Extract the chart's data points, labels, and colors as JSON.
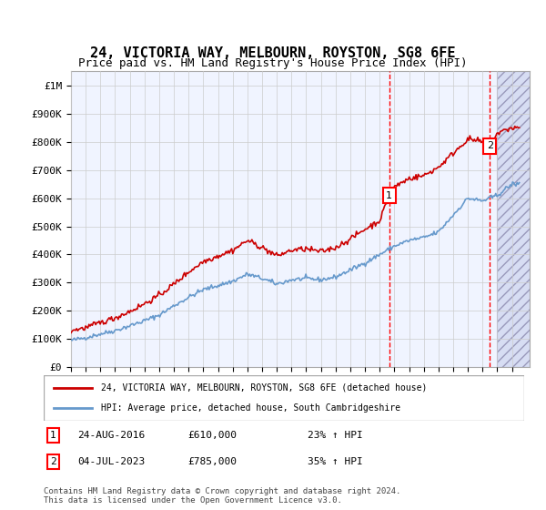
{
  "title": "24, VICTORIA WAY, MELBOURN, ROYSTON, SG8 6FE",
  "subtitle": "Price paid vs. HM Land Registry's House Price Index (HPI)",
  "legend_line1": "24, VICTORIA WAY, MELBOURN, ROYSTON, SG8 6FE (detached house)",
  "legend_line2": "HPI: Average price, detached house, South Cambridgeshire",
  "annotation1": {
    "label": "1",
    "date": "24-AUG-2016",
    "price": "£610,000",
    "hpi": "23% ↑ HPI"
  },
  "annotation2": {
    "label": "2",
    "date": "04-JUL-2023",
    "price": "£785,000",
    "hpi": "35% ↑ HPI"
  },
  "footer": "Contains HM Land Registry data © Crown copyright and database right 2024.\nThis data is licensed under the Open Government Licence v3.0.",
  "ylim": [
    0,
    1050000
  ],
  "yticks": [
    0,
    100000,
    200000,
    300000,
    400000,
    500000,
    600000,
    700000,
    800000,
    900000,
    1000000
  ],
  "ytick_labels": [
    "£0",
    "£100K",
    "£200K",
    "£300K",
    "£400K",
    "£500K",
    "£600K",
    "£700K",
    "£800K",
    "£900K",
    "£1M"
  ],
  "hpi_color": "#6699cc",
  "price_color": "#cc0000",
  "marker1_x": 2016.65,
  "marker2_x": 2023.5,
  "sale1_price": 610000,
  "sale2_price": 785000,
  "background_color": "#f0f4ff",
  "hatch_color": "#c0c8e8",
  "plot_bg": "#ffffff"
}
